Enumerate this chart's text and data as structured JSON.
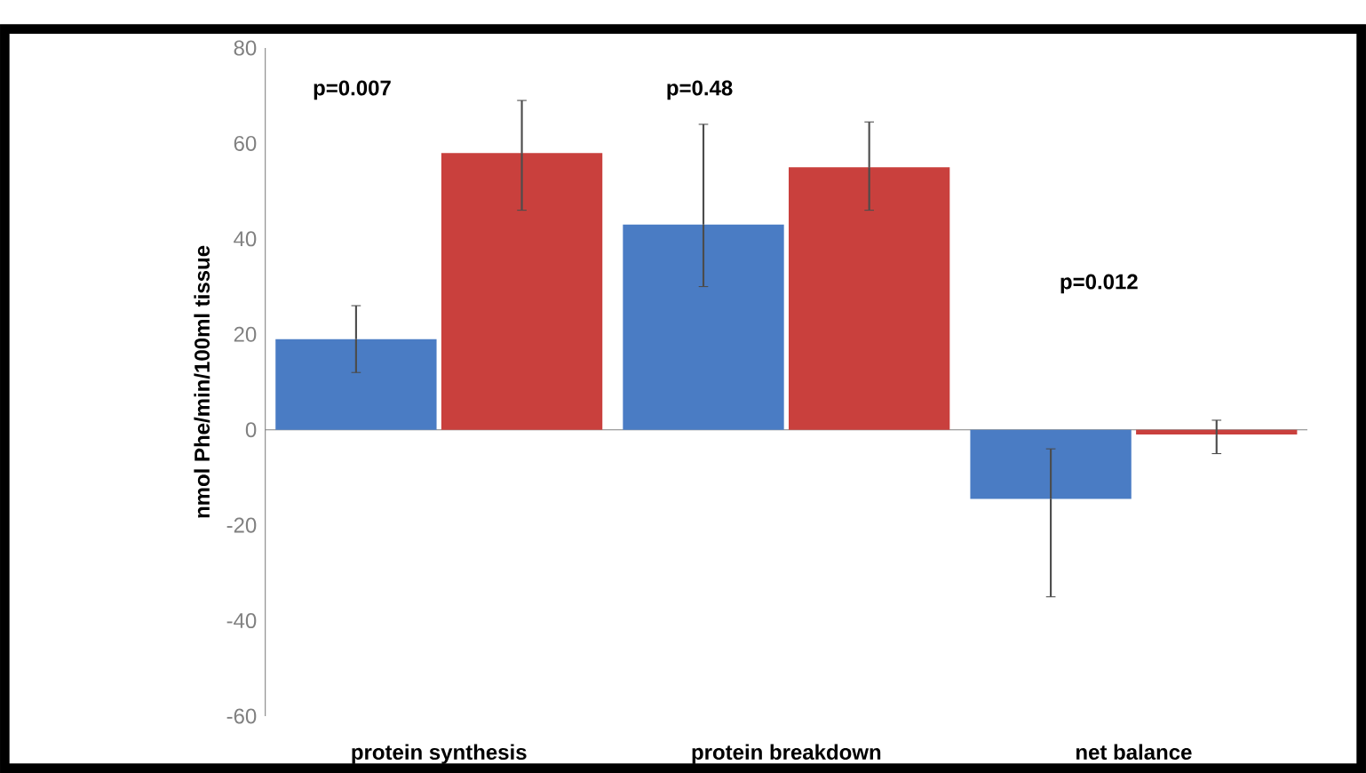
{
  "chart_data": {
    "type": "bar",
    "ylabel": "nmol Phe/min/100ml tissue",
    "categories": [
      "protein synthesis",
      "protein breakdown",
      "net balance"
    ],
    "series": [
      {
        "color": "#4a7cc4",
        "values": [
          19,
          43,
          -14.5
        ],
        "errors": [
          [
            12,
            26
          ],
          [
            30,
            64
          ],
          [
            -35,
            -4
          ]
        ]
      },
      {
        "color": "#c9403d",
        "values": [
          58,
          55,
          -1
        ],
        "errors": [
          [
            46,
            69
          ],
          [
            46,
            64.5
          ],
          [
            -5,
            2
          ]
        ]
      }
    ],
    "ylim": [
      -60,
      80
    ],
    "yticks": [
      -60,
      -40,
      -20,
      0,
      20,
      40,
      60,
      80
    ],
    "annotations": [
      "p=0.007",
      "p=0.48",
      "p=0.012"
    ]
  }
}
